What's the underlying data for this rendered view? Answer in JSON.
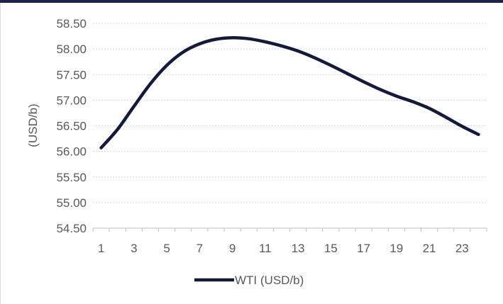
{
  "colors": {
    "series": "#141a3c",
    "grid": "#d9d9d9",
    "text": "#595959",
    "frame": "#1b2447"
  },
  "chart_data": {
    "type": "line",
    "title": "",
    "xlabel": "",
    "ylabel": "(USD/b)",
    "x": [
      1,
      2,
      3,
      4,
      5,
      6,
      7,
      8,
      9,
      10,
      11,
      12,
      13,
      14,
      15,
      16,
      17,
      18,
      19,
      20,
      21,
      22,
      23,
      24
    ],
    "x_tick_labels": [
      "1",
      "3",
      "5",
      "7",
      "9",
      "11",
      "13",
      "15",
      "17",
      "19",
      "21",
      "23"
    ],
    "y_tick_labels": [
      "54.50",
      "55.00",
      "55.50",
      "56.00",
      "56.50",
      "57.00",
      "57.50",
      "58.00",
      "58.50"
    ],
    "ylim": [
      54.5,
      58.5
    ],
    "grid": true,
    "legend_position": "bottom",
    "series": [
      {
        "name": "WTI (USD/b)",
        "values": [
          56.07,
          56.43,
          56.88,
          57.32,
          57.68,
          57.94,
          58.1,
          58.19,
          58.22,
          58.2,
          58.14,
          58.06,
          57.96,
          57.83,
          57.68,
          57.52,
          57.36,
          57.21,
          57.08,
          56.97,
          56.84,
          56.67,
          56.49,
          56.33
        ]
      }
    ]
  }
}
